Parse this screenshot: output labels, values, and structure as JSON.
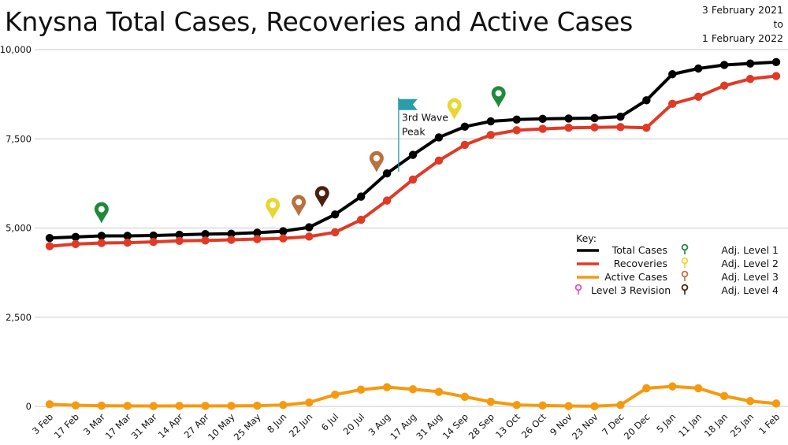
{
  "title": "Knysna Total Cases, Recoveries and Active Cases",
  "date_range": {
    "line1": "3 February 2021",
    "line2": "to",
    "line3": "1 February 2022"
  },
  "colors": {
    "total": "#000000",
    "recoveries": "#e03a26",
    "active": "#f59a10",
    "level1": "#1e8a3a",
    "level2": "#e8d730",
    "level3": "#b8713f",
    "level4": "#4a200f",
    "revision": "#e04fc0",
    "flag": "#2a9ea8",
    "grid": "#c9c9c9"
  },
  "chart_data": {
    "type": "line",
    "title": "Knysna Total Cases, Recoveries and Active Cases",
    "xlabel": "",
    "ylabel": "",
    "ylim": [
      0,
      10000
    ],
    "yticks": [
      0,
      2500,
      5000,
      7500,
      10000
    ],
    "ytick_labels": [
      "0",
      "2,500",
      "5,000",
      "7,500",
      "10,000"
    ],
    "grid": true,
    "legend_position": "right",
    "categories": [
      "3 Feb",
      "17 Feb",
      "3 Mar",
      "17 Mar",
      "31 Mar",
      "14 Apr",
      "27 Apr",
      "10 May",
      "25 May",
      "8 Jun",
      "22 Jun",
      "6 Jul",
      "20 Jul",
      "3 Aug",
      "17 Aug",
      "31 Aug",
      "14 Sep",
      "28 Sep",
      "13 Oct",
      "26 Oct",
      "9 Nov",
      "23 Nov",
      "7 Dec",
      "20 Dec",
      "5 Jan",
      "11 Jan",
      "18 Jan",
      "25 Jan",
      "1 Feb"
    ],
    "series": [
      {
        "name": "Total Cases",
        "color": "#000000",
        "values": [
          4720,
          4750,
          4780,
          4780,
          4790,
          4810,
          4830,
          4840,
          4870,
          4910,
          5020,
          5380,
          5880,
          6530,
          7050,
          7540,
          7840,
          7990,
          8040,
          8060,
          8070,
          8080,
          8120,
          8580,
          9310,
          9470,
          9570,
          9610,
          9650
        ]
      },
      {
        "name": "Recoveries",
        "color": "#e03a26",
        "values": [
          4490,
          4550,
          4580,
          4590,
          4610,
          4640,
          4650,
          4670,
          4690,
          4710,
          4760,
          4880,
          5230,
          5770,
          6360,
          6890,
          7330,
          7610,
          7740,
          7780,
          7810,
          7820,
          7830,
          7810,
          8480,
          8680,
          8990,
          9180,
          9260
        ]
      },
      {
        "name": "Active Cases",
        "color": "#f59a10",
        "values": [
          60,
          30,
          20,
          15,
          10,
          15,
          15,
          15,
          20,
          40,
          110,
          330,
          470,
          540,
          480,
          410,
          270,
          130,
          40,
          25,
          10,
          5,
          40,
          510,
          560,
          510,
          290,
          150,
          80
        ]
      }
    ],
    "annotations": [
      {
        "type": "flag",
        "text_line1": "3rd Wave",
        "text_line2": "Peak",
        "x_index": 13.45,
        "y_top": 8660
      }
    ],
    "markers": [
      {
        "level": "level1",
        "x_index": 2,
        "y": 5130
      },
      {
        "level": "level2",
        "x_index": 8.6,
        "y": 5250
      },
      {
        "level": "level3",
        "x_index": 9.6,
        "y": 5330
      },
      {
        "level": "level4",
        "x_index": 10.5,
        "y": 5580
      },
      {
        "level": "level3",
        "x_index": 12.6,
        "y": 6560
      },
      {
        "level": "level2",
        "x_index": 15.6,
        "y": 8040
      },
      {
        "level": "level1",
        "x_index": 17.3,
        "y": 8380
      }
    ]
  },
  "legend": {
    "heading": "Key:",
    "lines": [
      {
        "label": "Total Cases",
        "color": "#000000"
      },
      {
        "label": "Recoveries",
        "color": "#e03a26"
      },
      {
        "label": "Active Cases",
        "color": "#f59a10"
      }
    ],
    "revision": {
      "label": "Level 3 Revision",
      "color": "#e04fc0"
    },
    "levels": [
      {
        "label": "Adj. Level 1",
        "color": "#1e8a3a"
      },
      {
        "label": "Adj. Level 2",
        "color": "#e8d730"
      },
      {
        "label": "Adj. Level 3",
        "color": "#b8713f"
      },
      {
        "label": "Adj. Level 4",
        "color": "#4a200f"
      }
    ]
  }
}
